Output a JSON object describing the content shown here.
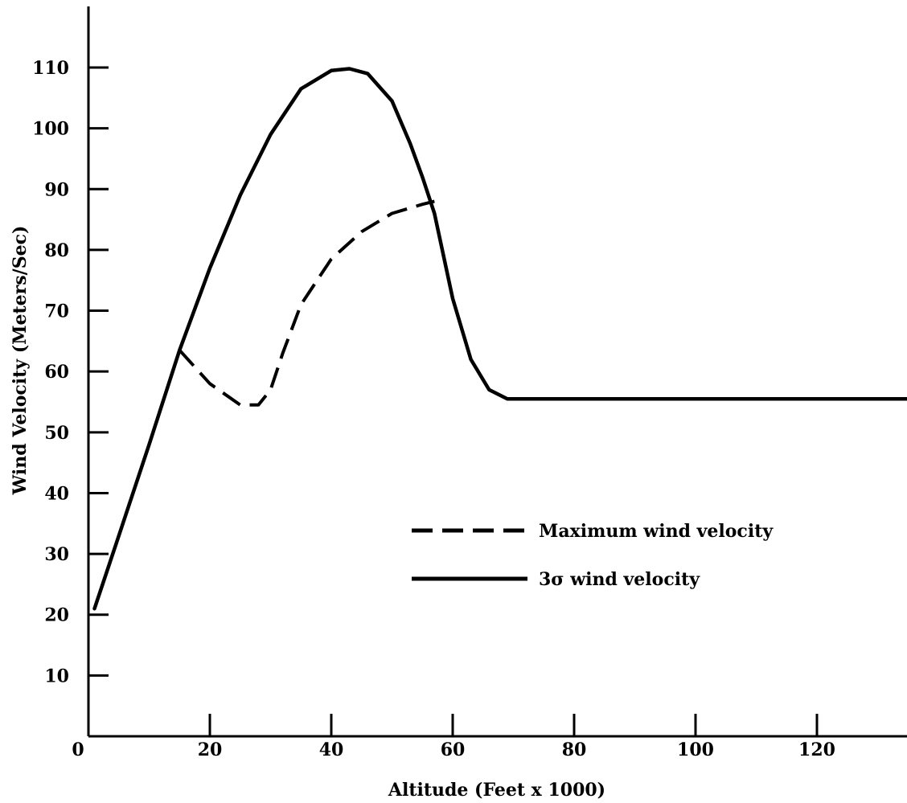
{
  "chart_data": {
    "type": "line",
    "title": "",
    "xlabel": "Altitude (Feet x 1000)",
    "ylabel": "Wind Velocity (Meters/Sec)",
    "xlim": [
      0,
      135
    ],
    "ylim": [
      0,
      120
    ],
    "xticks": [
      0,
      20,
      40,
      60,
      80,
      100,
      120
    ],
    "yticks": [
      10,
      20,
      30,
      40,
      50,
      60,
      70,
      80,
      90,
      100,
      110
    ],
    "legend_position": "right-center",
    "grid": false,
    "series": [
      {
        "name": "Maximum wind velocity",
        "style": "dashed",
        "color": "#000000",
        "x": [
          15,
          20,
          25,
          28,
          30,
          32,
          35,
          40,
          45,
          50,
          55,
          57
        ],
        "y": [
          63.5,
          58,
          54.5,
          54.5,
          57,
          63,
          71,
          78.5,
          83,
          86,
          87.5,
          88
        ]
      },
      {
        "name": "3σ wind velocity",
        "style": "solid",
        "color": "#000000",
        "x": [
          1,
          5,
          10,
          15,
          20,
          25,
          30,
          35,
          40,
          43,
          46,
          50,
          53,
          55,
          57,
          60,
          63,
          66,
          69,
          80,
          100,
          120,
          135
        ],
        "y": [
          21,
          33,
          48,
          63.5,
          77,
          89,
          99,
          106.5,
          109.5,
          109.8,
          109,
          104.5,
          97.5,
          92,
          86,
          72,
          62,
          57,
          55.5,
          55.5,
          55.5,
          55.5,
          55.5
        ]
      }
    ]
  }
}
